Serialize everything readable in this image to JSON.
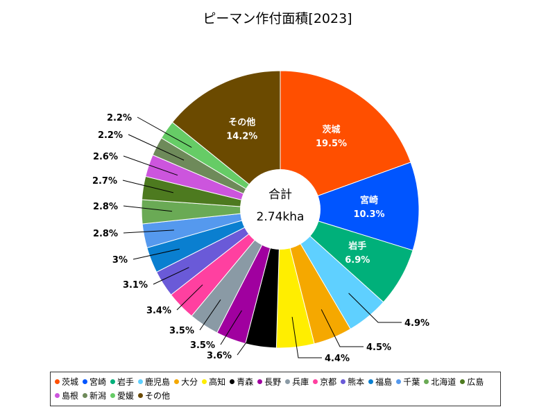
{
  "chart_data": {
    "type": "pie",
    "title": "ピーマン作付面積[2023]",
    "center_label": "合計",
    "center_value": "2.74kha",
    "slices": [
      {
        "name": "茨城",
        "value": 19.5,
        "label": "19.5%",
        "color": "#ff4f00"
      },
      {
        "name": "宮崎",
        "value": 10.3,
        "label": "10.3%",
        "color": "#0055ff"
      },
      {
        "name": "岩手",
        "value": 6.9,
        "label": "6.9%",
        "color": "#00b07a"
      },
      {
        "name": "鹿児島",
        "value": 4.9,
        "label": "4.9%",
        "color": "#5fd0ff"
      },
      {
        "name": "大分",
        "value": 4.5,
        "label": "4.5%",
        "color": "#f5a800"
      },
      {
        "name": "高知",
        "value": 4.4,
        "label": "4.4%",
        "color": "#ffee00"
      },
      {
        "name": "青森",
        "value": 3.6,
        "label": "3.6%",
        "color": "#000000"
      },
      {
        "name": "長野",
        "value": 3.5,
        "label": "3.5%",
        "color": "#a0009f"
      },
      {
        "name": "兵庫",
        "value": 3.5,
        "label": "3.5%",
        "color": "#8a9aa5"
      },
      {
        "name": "京都",
        "value": 3.4,
        "label": "3.4%",
        "color": "#ff40a0"
      },
      {
        "name": "熊本",
        "value": 3.1,
        "label": "3.1%",
        "color": "#6a5ad8"
      },
      {
        "name": "福島",
        "value": 3.0,
        "label": "3%",
        "color": "#0a7fd0"
      },
      {
        "name": "千葉",
        "value": 2.8,
        "label": "2.8%",
        "color": "#5599ee"
      },
      {
        "name": "北海道",
        "value": 2.8,
        "label": "2.8%",
        "color": "#6aaa55"
      },
      {
        "name": "広島",
        "value": 2.7,
        "label": "2.7%",
        "color": "#4d7a1f"
      },
      {
        "name": "島根",
        "value": 2.6,
        "label": "2.6%",
        "color": "#cc55dd"
      },
      {
        "name": "新潟",
        "value": 2.2,
        "label": "2.2%",
        "color": "#6e8a5a"
      },
      {
        "name": "愛媛",
        "value": 2.2,
        "label": "2.2%",
        "color": "#66cc66"
      },
      {
        "name": "その他",
        "value": 14.2,
        "label": "14.2%",
        "color": "#6b4a00"
      }
    ],
    "inside_labels": [
      "茨城",
      "宮崎",
      "岩手",
      "その他"
    ],
    "legend_placement": "bottom"
  }
}
